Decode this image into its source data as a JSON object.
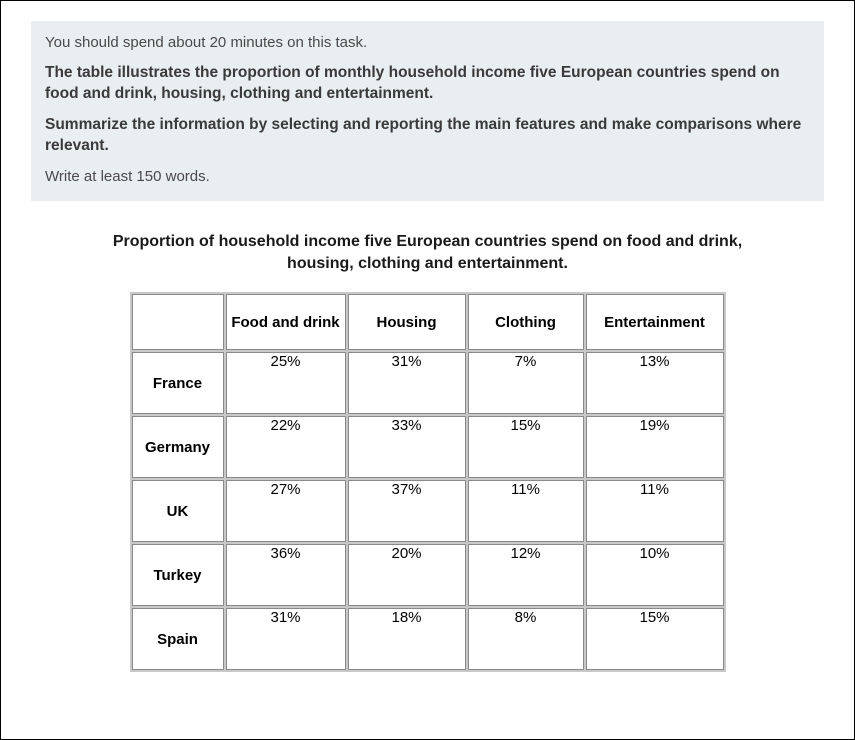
{
  "prompt": {
    "time_note": "You should spend about 20 minutes on this task.",
    "description": "The table illustrates the proportion of monthly household income five European countries spend on food and drink, housing, clothing and entertainment.",
    "instruction": "Summarize the information by selecting and reporting the main features and make comparisons where relevant.",
    "words_note": "Write at least 150 words."
  },
  "table": {
    "title": "Proportion of household income five European countries spend on food and drink, housing, clothing and entertainment.",
    "type": "table",
    "header_bg": "#7db4ea",
    "border_color": "#8a8a8a",
    "cell_bg": "#ffffff",
    "columns": [
      "Food and drink",
      "Housing",
      "Clothing",
      "Entertainment"
    ],
    "rows": [
      {
        "label": "France",
        "values": [
          "25%",
          "31%",
          "7%",
          "13%"
        ]
      },
      {
        "label": "Germany",
        "values": [
          "22%",
          "33%",
          "15%",
          "19%"
        ]
      },
      {
        "label": "UK",
        "values": [
          "27%",
          "37%",
          "11%",
          "11%"
        ]
      },
      {
        "label": "Turkey",
        "values": [
          "36%",
          "20%",
          "12%",
          "10%"
        ]
      },
      {
        "label": "Spain",
        "values": [
          "31%",
          "18%",
          "8%",
          "15%"
        ]
      }
    ]
  },
  "style": {
    "prompt_bg": "#e9eef0",
    "text_color": "#4a4a4a",
    "bold_text_color": "#3a3a3a",
    "page_bg": "#ffffff",
    "page_border": "#000000",
    "font_family": "Arial",
    "title_fontsize": 16,
    "body_fontsize": 15
  }
}
